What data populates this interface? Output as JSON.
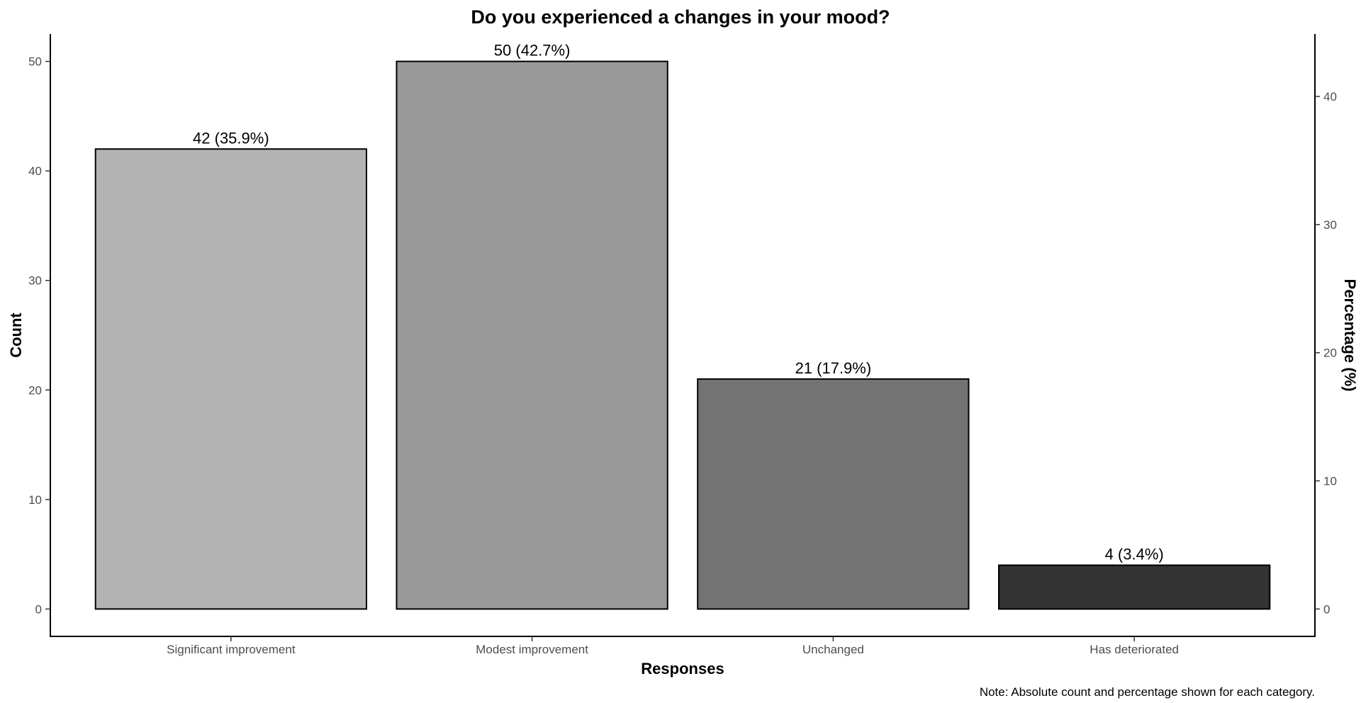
{
  "chart_data": {
    "type": "bar",
    "title": "Do you experienced a changes in your mood?",
    "xlabel": "Responses",
    "ylabel": "Count",
    "ylabel_right": "Percentage (%)",
    "categories": [
      "Significant improvement",
      "Modest improvement",
      "Unchanged",
      "Has deteriorated"
    ],
    "values": [
      42,
      50,
      21,
      4
    ],
    "percentages": [
      35.9,
      42.7,
      17.9,
      3.4
    ],
    "data_labels": [
      "42 (35.9%)",
      "50 (42.7%)",
      "21 (17.9%)",
      "4 (3.4%)"
    ],
    "colors": [
      "#b3b3b3",
      "#999999",
      "#737373",
      "#333333"
    ],
    "ylim": [
      -2.5,
      52.5
    ],
    "yticks": [
      0,
      10,
      20,
      30,
      40,
      50
    ],
    "ylim_right": [
      -2.137,
      44.872
    ],
    "yticks_right": [
      0,
      10,
      20,
      30,
      40
    ],
    "grid": false,
    "legend": "none",
    "note": "Note: Absolute count and percentage shown for each category."
  }
}
